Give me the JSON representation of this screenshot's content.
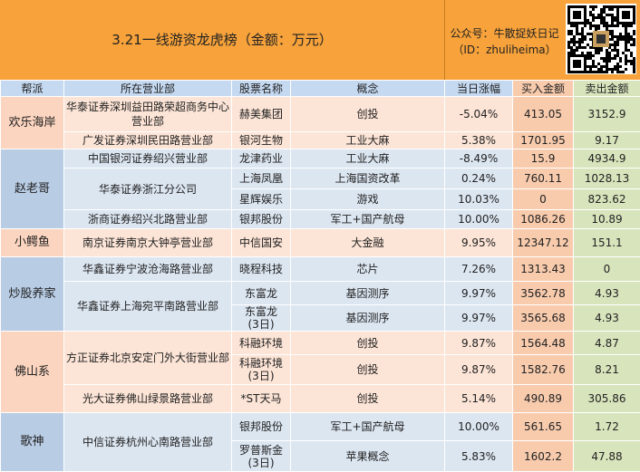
{
  "header": {
    "title": "3.21一线游资龙虎榜（金额：万元）",
    "account": "公众号：牛散捉妖日记",
    "id": "（ID：zhuliheima）"
  },
  "table": {
    "columns": [
      "帮派",
      "所在营业部",
      "股票名称",
      "概念",
      "当日涨幅",
      "买入金额",
      "卖出金额"
    ],
    "groups": [
      {
        "name": "欢乐海岸",
        "branches": [
          {
            "name": "华泰证券深圳益田路荣超商务中心营业部",
            "stocks": [
              [
                "赫美集团",
                "创投",
                "-5.04%",
                "413.05",
                "3152.9"
              ]
            ]
          },
          {
            "name": "广发证券深圳民田路营业部",
            "stocks": [
              [
                "银河生物",
                "工业大麻",
                "5.38%",
                "1701.95",
                "9.17"
              ]
            ]
          }
        ]
      },
      {
        "name": "赵老哥",
        "branches": [
          {
            "name": "中国银河证券绍兴营业部",
            "stocks": [
              [
                "龙津药业",
                "工业大麻",
                "-8.49%",
                "15.9",
                "4934.9"
              ]
            ]
          },
          {
            "name": "华泰证券浙江分公司",
            "stocks": [
              [
                "上海凤凰",
                "上海国资改革",
                "0.24%",
                "760.11",
                "1028.13"
              ],
              [
                "星辉娱乐",
                "游戏",
                "10.03%",
                "0",
                "823.62"
              ]
            ]
          },
          {
            "name": "浙商证券绍兴北路营业部",
            "stocks": [
              [
                "银邦股份",
                "军工+国产航母",
                "10.00%",
                "1086.26",
                "10.89"
              ]
            ]
          }
        ]
      },
      {
        "name": "小鳄鱼",
        "branches": [
          {
            "name": "南京证券南京大钟亭营业部",
            "stocks": [
              [
                "中信国安",
                "大金融",
                "9.95%",
                "12347.12",
                "151.1"
              ]
            ]
          }
        ]
      },
      {
        "name": "炒股养家",
        "branches": [
          {
            "name": "华鑫证券宁波沧海路营业部",
            "stocks": [
              [
                "晓程科技",
                "芯片",
                "7.26%",
                "1313.43",
                "0"
              ]
            ]
          },
          {
            "name": "华鑫证券上海宛平南路营业部",
            "stocks": [
              [
                "东富龙",
                "基因测序",
                "9.97%",
                "3562.78",
                "4.93"
              ],
              [
                "东富龙\n(3日)",
                "基因测序",
                "9.97%",
                "3565.68",
                "4.93"
              ]
            ]
          }
        ]
      },
      {
        "name": "佛山系",
        "branches": [
          {
            "name": "方正证券北京安定门外大街营业部",
            "stocks": [
              [
                "科融环境",
                "创投",
                "9.87%",
                "1564.48",
                "4.87"
              ],
              [
                "科融环境\n(3日)",
                "创投",
                "9.87%",
                "1582.76",
                "8.21"
              ]
            ]
          },
          {
            "name": "光大证券佛山绿景路营业部",
            "stocks": [
              [
                "*ST天马",
                "创投",
                "5.14%",
                "490.89",
                "305.86"
              ]
            ]
          }
        ]
      },
      {
        "name": "歌神",
        "branches": [
          {
            "name": "中信证券杭州心南路营业部",
            "stocks": [
              [
                "银邦股份",
                "军工+国产航母",
                "10.00%",
                "561.65",
                "1.72"
              ],
              [
                "罗普斯金\n(3日)",
                "苹果概念",
                "5.83%",
                "1602.2",
                "47.88"
              ]
            ]
          }
        ]
      }
    ]
  }
}
